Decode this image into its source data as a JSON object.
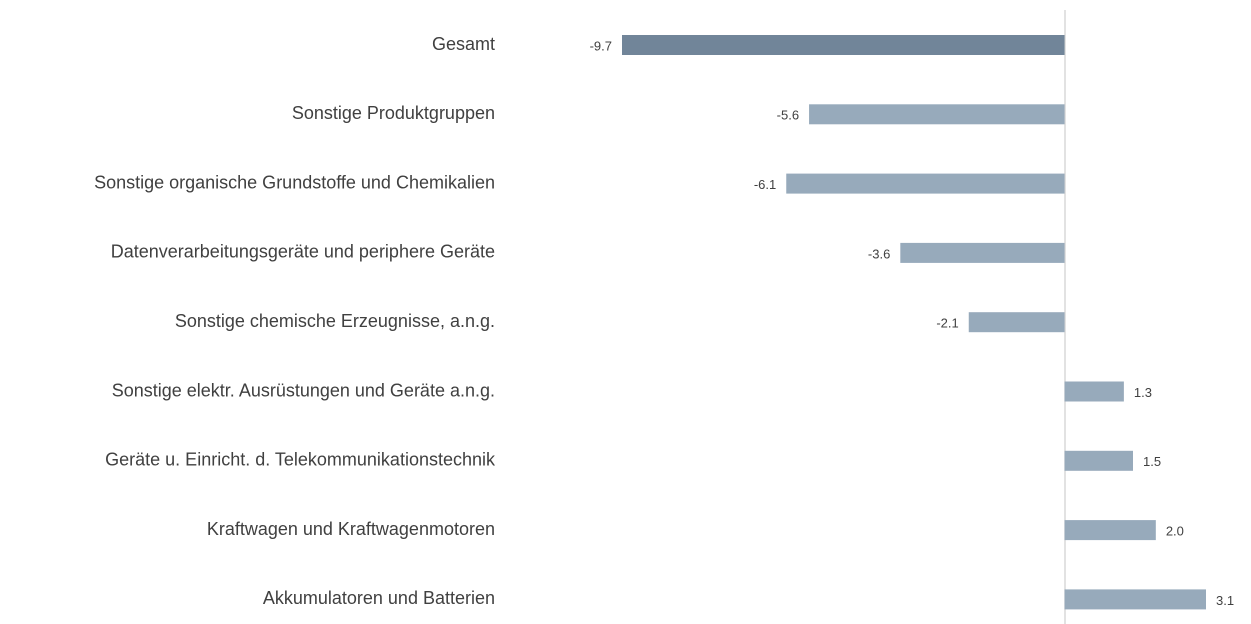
{
  "chart_data": {
    "type": "hbar",
    "categories": [
      "Gesamt",
      "Sonstige Produktgruppen",
      "Sonstige organische Grundstoffe und Chemikalien",
      "Datenverarbeitungsgeräte und periphere Geräte",
      "Sonstige chemische Erzeugnisse, a.n.g.",
      "Sonstige elektr. Ausrüstungen und Geräte a.n.g.",
      "Geräte u. Einricht. d. Telekommunikationstechnik",
      "Kraftwagen und Kraftwagenmotoren",
      "Akkumulatoren und Batterien"
    ],
    "values": [
      -9.7,
      -5.6,
      -6.1,
      -3.6,
      -2.1,
      1.3,
      1.5,
      2.0,
      3.1
    ],
    "value_labels": [
      "-9.7",
      "-5.6",
      "-6.1",
      "-3.6",
      "-2.1",
      "1.3",
      "1.5",
      "2.0",
      "3.1"
    ],
    "colors": [
      "#718599",
      "#97aabb",
      "#97aabb",
      "#97aabb",
      "#97aabb",
      "#97aabb",
      "#97aabb",
      "#97aabb",
      "#97aabb"
    ]
  }
}
